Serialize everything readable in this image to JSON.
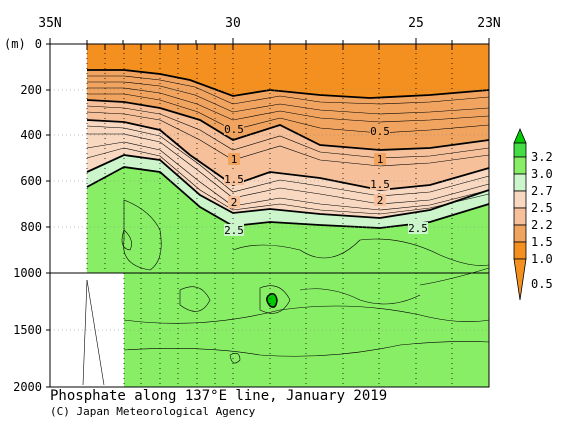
{
  "chart_data": {
    "type": "contour-section",
    "title": "Phosphate along 137°E line, January 2019",
    "credit": "(C) Japan Meteorological Agency",
    "x_axis": {
      "ticks": [
        {
          "lat": 35,
          "label": "35N"
        },
        {
          "lat": 30,
          "label": "30"
        },
        {
          "lat": 25,
          "label": "25"
        },
        {
          "lat": 23,
          "label": "23N"
        }
      ],
      "range": [
        35,
        23
      ]
    },
    "y_axis": {
      "unit_label": "(m)",
      "upper_range": [
        0,
        1000
      ],
      "lower_range": [
        1000,
        2000
      ],
      "ticks": [
        "0",
        "200",
        "400",
        "600",
        "800",
        "1000",
        "1500",
        "2000"
      ]
    },
    "contour_labels": [
      "0.5",
      "1",
      "1.5",
      "2",
      "2.5",
      "0.5",
      "1",
      "1.5",
      "2",
      "2.5"
    ],
    "colorbar": {
      "labels": [
        "3.2",
        "3.0",
        "2.7",
        "2.5",
        "2.2",
        "1.5",
        "1.0",
        "0.5"
      ],
      "colors": {
        "c_ge_3_2": "#00cc00",
        "c_3_0": "#44dd44",
        "c_2_7": "#88ee66",
        "c_2_5": "#ccf5cc",
        "c_2_2": "#f8d8c0",
        "c_1_5": "#f5c09a",
        "c_1_0": "#f0a460",
        "c_le_0_5": "#f49020"
      }
    }
  }
}
